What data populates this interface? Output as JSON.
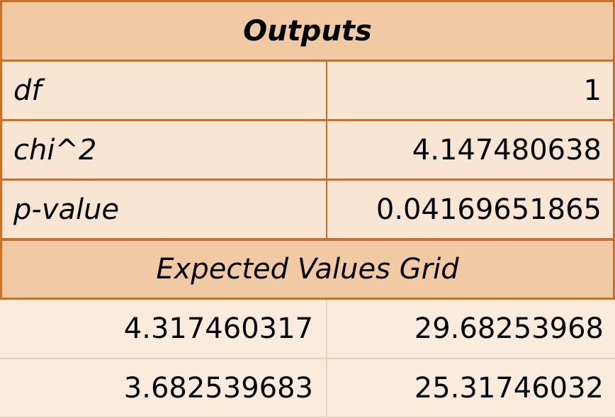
{
  "outputs_title": "Outputs",
  "stats": [
    {
      "label": "df",
      "value": "1"
    },
    {
      "label": "chi^2",
      "value": "4.147480638"
    },
    {
      "label": "p-value",
      "value": "0.04169651865"
    }
  ],
  "expected_title": "Expected Values Grid",
  "expected_grid": [
    [
      "4.317460317",
      "29.68253968"
    ],
    [
      "3.682539683",
      "25.31746032"
    ]
  ],
  "colors": {
    "header_fill": "#f1c9a4",
    "cell_fill": "#f8e5d3",
    "border": "#c4722f"
  }
}
